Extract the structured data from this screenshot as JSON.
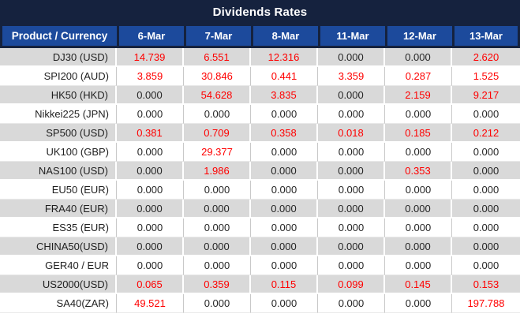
{
  "title": "Dividends Rates",
  "colors": {
    "title_bg": "#15223e",
    "title_text": "#ffffff",
    "header_bg": "#1c4a9c",
    "header_border": "#15223e",
    "row_alt_bg": "#d9d9d9",
    "row_bg": "#ffffff",
    "rate_nonzero": "#ff0000",
    "rate_zero": "#262626"
  },
  "table": {
    "product_header": "Product / Currency",
    "date_headers": [
      "6-Mar",
      "7-Mar",
      "8-Mar",
      "11-Mar",
      "12-Mar",
      "13-Mar"
    ],
    "rows": [
      {
        "product": "DJ30 (USD)",
        "values": [
          "14.739",
          "6.551",
          "12.316",
          "0.000",
          "0.000",
          "2.620"
        ]
      },
      {
        "product": "SPI200 (AUD)",
        "values": [
          "3.859",
          "30.846",
          "0.441",
          "3.359",
          "0.287",
          "1.525"
        ]
      },
      {
        "product": "HK50 (HKD)",
        "values": [
          "0.000",
          "54.628",
          "3.835",
          "0.000",
          "2.159",
          "9.217"
        ]
      },
      {
        "product": "Nikkei225 (JPN)",
        "values": [
          "0.000",
          "0.000",
          "0.000",
          "0.000",
          "0.000",
          "0.000"
        ]
      },
      {
        "product": "SP500 (USD)",
        "values": [
          "0.381",
          "0.709",
          "0.358",
          "0.018",
          "0.185",
          "0.212"
        ]
      },
      {
        "product": "UK100 (GBP)",
        "values": [
          "0.000",
          "29.377",
          "0.000",
          "0.000",
          "0.000",
          "0.000"
        ]
      },
      {
        "product": "NAS100 (USD)",
        "values": [
          "0.000",
          "1.986",
          "0.000",
          "0.000",
          "0.353",
          "0.000"
        ]
      },
      {
        "product": "EU50 (EUR)",
        "values": [
          "0.000",
          "0.000",
          "0.000",
          "0.000",
          "0.000",
          "0.000"
        ]
      },
      {
        "product": "FRA40 (EUR)",
        "values": [
          "0.000",
          "0.000",
          "0.000",
          "0.000",
          "0.000",
          "0.000"
        ]
      },
      {
        "product": "ES35 (EUR)",
        "values": [
          "0.000",
          "0.000",
          "0.000",
          "0.000",
          "0.000",
          "0.000"
        ]
      },
      {
        "product": "CHINA50(USD)",
        "values": [
          "0.000",
          "0.000",
          "0.000",
          "0.000",
          "0.000",
          "0.000"
        ]
      },
      {
        "product": "GER40 / EUR",
        "values": [
          "0.000",
          "0.000",
          "0.000",
          "0.000",
          "0.000",
          "0.000"
        ]
      },
      {
        "product": "US2000(USD)",
        "values": [
          "0.065",
          "0.359",
          "0.115",
          "0.099",
          "0.145",
          "0.153"
        ]
      },
      {
        "product": "SA40(ZAR)",
        "values": [
          "49.521",
          "0.000",
          "0.000",
          "0.000",
          "0.000",
          "197.788"
        ]
      }
    ]
  }
}
